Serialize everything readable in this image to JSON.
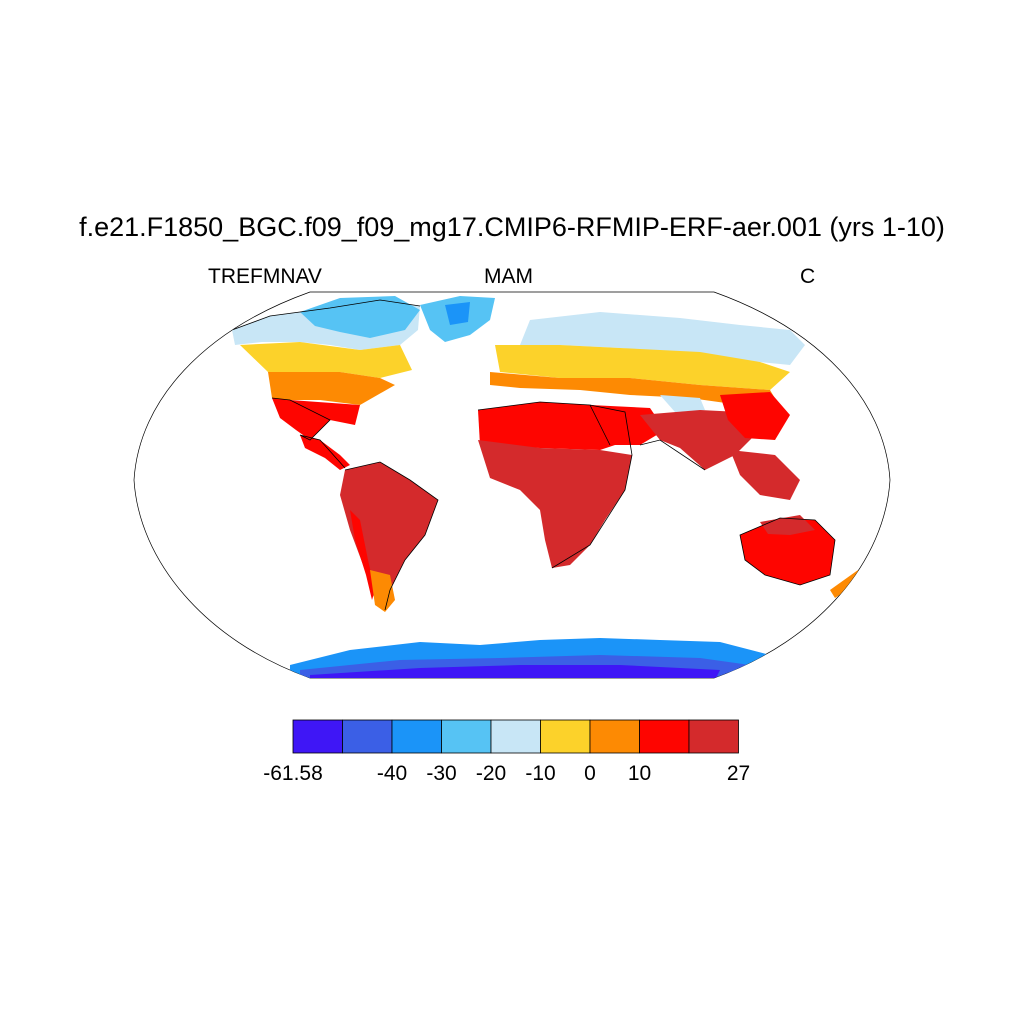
{
  "title": "f.e21.F1850_BGC.f09_f09_mg17.CMIP6-RFMIP-ERF-aer.001 (yrs 1-10)",
  "subtitle_left": "TREFMNAV",
  "subtitle_center": "MAM",
  "subtitle_right": "C",
  "colorbar": {
    "colors": [
      "#3f16f6",
      "#3b5fe6",
      "#1b94f8",
      "#56c3f4",
      "#c8e6f6",
      "#fcd22a",
      "#fd8a03",
      "#fe0500",
      "#d42a2c"
    ],
    "labels": [
      {
        "text": "-61.58",
        "boundary": 0
      },
      {
        "text": "-40",
        "boundary": 2
      },
      {
        "text": "-30",
        "boundary": 3
      },
      {
        "text": "-20",
        "boundary": 4
      },
      {
        "text": "-10",
        "boundary": 5
      },
      {
        "text": "0",
        "boundary": 6
      },
      {
        "text": "10",
        "boundary": 7
      },
      {
        "text": "27",
        "boundary": 9
      }
    ]
  },
  "map_data": {
    "projection": "Robinson",
    "variable": "TREFMNAV",
    "season": "MAM",
    "units": "C",
    "range": [
      -61.58,
      27
    ]
  }
}
